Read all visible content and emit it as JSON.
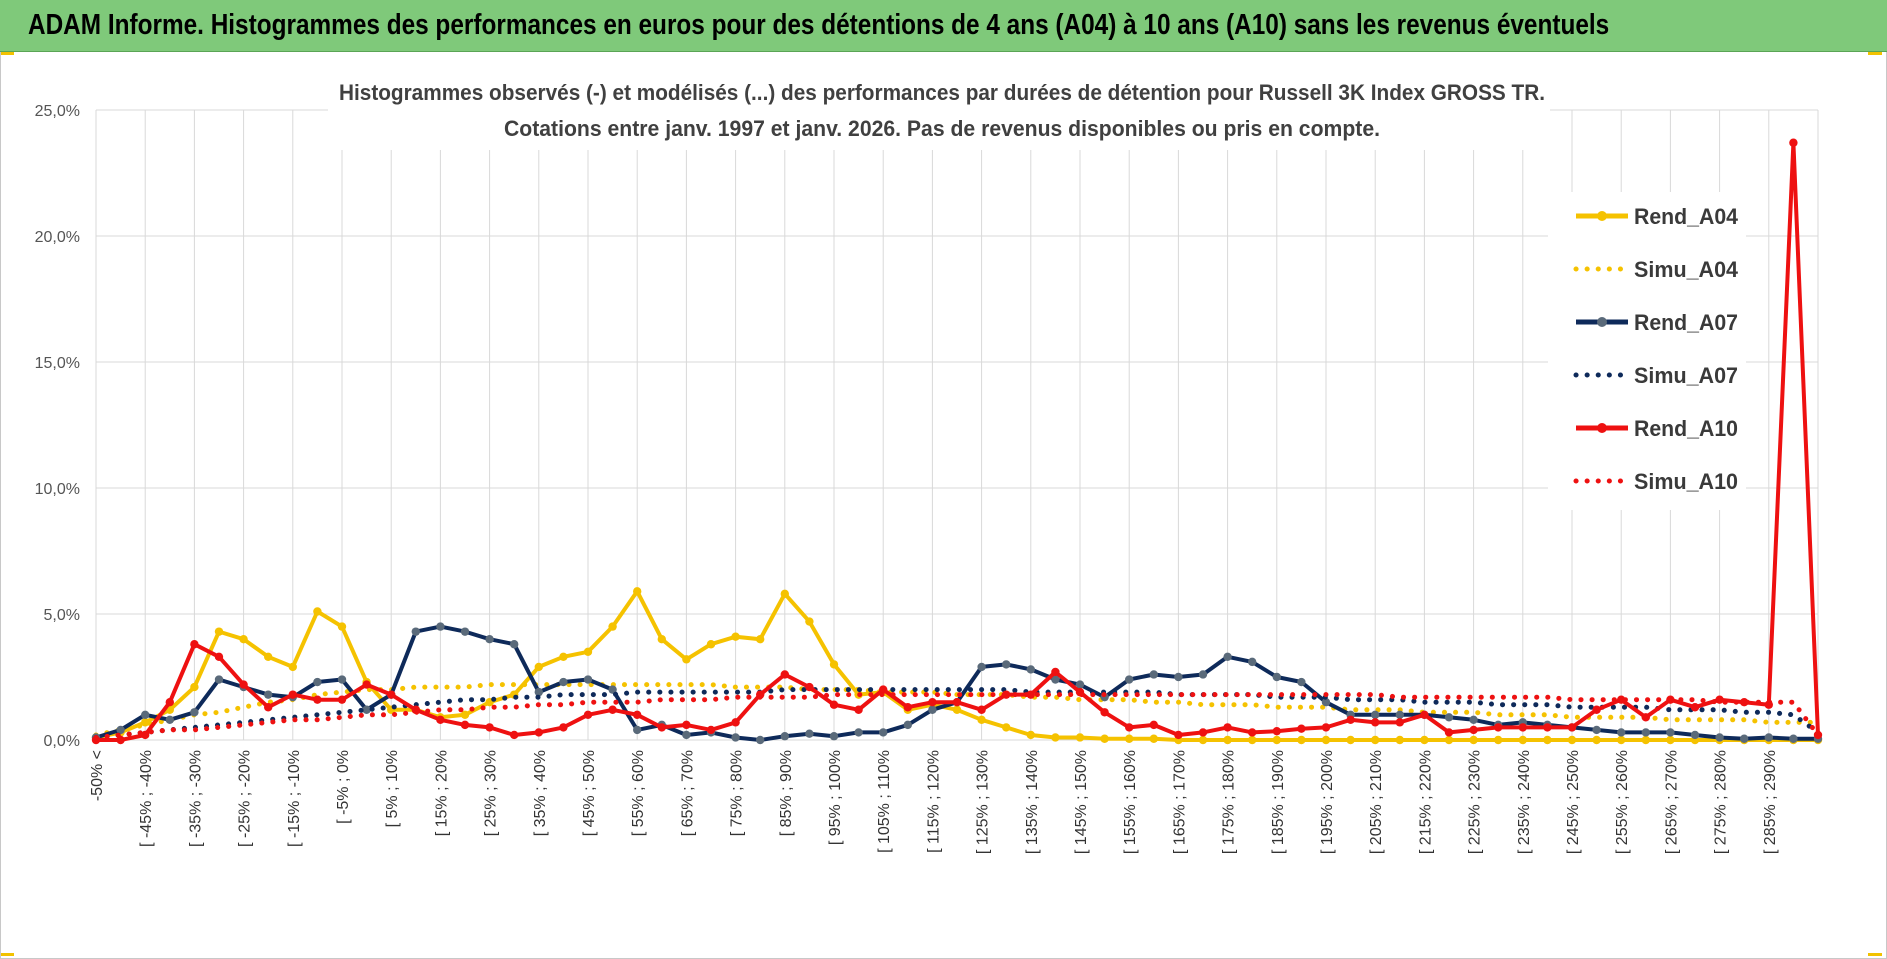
{
  "banner": {
    "title": "ADAM Informe. Histogrammes des performances en euros pour des détentions de 4 ans (A04) à 10 ans (A10) sans les revenus éventuels",
    "background_color": "#7fc97a"
  },
  "chart_data": {
    "type": "line",
    "title": [
      "Histogrammes observés (-) et modélisés (...) des performances par durées de détention pour Russell 3K Index GROSS TR.",
      "Cotations entre janv. 1997 et janv. 2026. Pas de revenus disponibles ou pris en compte."
    ],
    "xlabel": "",
    "ylabel": "",
    "ylim": [
      0,
      25
    ],
    "yticks": [
      "0,0%",
      "5,0%",
      "10,0%",
      "15,0%",
      "20,0%",
      "25,0%"
    ],
    "grid": true,
    "legend_position": "right",
    "categories": [
      "-50% <",
      "[ -50% ; -45%",
      "[ -45% ; -40%",
      "[ -40% ; -35%",
      "[ -35% ; -30%",
      "[ -30% ; -25%",
      "[ -25% ; -20%",
      "[ -20% ; -15%",
      "[ -15% ; -10%",
      "[ -10% ; -5%",
      "[ -5% ; 0%",
      "[ 0% ; 5%",
      "[ 5% ; 10%",
      "[ 10% ; 15%",
      "[ 15% ; 20%",
      "[ 20% ; 25%",
      "[ 25% ; 30%",
      "[ 30% ; 35%",
      "[ 35% ; 40%",
      "[ 40% ; 45%",
      "[ 45% ; 50%",
      "[ 50% ; 55%",
      "[ 55% ; 60%",
      "[ 60% ; 65%",
      "[ 65% ; 70%",
      "[ 70% ; 75%",
      "[ 75% ; 80%",
      "[ 80% ; 85%",
      "[ 85% ; 90%",
      "[ 90% ; 95%",
      "[ 95% ; 100%",
      "[ 100% ; 105%",
      "[ 105% ; 110%",
      "[ 110% ; 115%",
      "[ 115% ; 120%",
      "[ 120% ; 125%",
      "[ 125% ; 130%",
      "[ 130% ; 135%",
      "[ 135% ; 140%",
      "[ 140% ; 145%",
      "[ 145% ; 150%",
      "[ 150% ; 155%",
      "[ 155% ; 160%",
      "[ 160% ; 165%",
      "[ 165% ; 170%",
      "[ 170% ; 175%",
      "[ 175% ; 180%",
      "[ 180% ; 185%",
      "[ 185% ; 190%",
      "[ 190% ; 195%",
      "[ 195% ; 200%",
      "[ 200% ; 205%",
      "[ 205% ; 210%",
      "[ 210% ; 215%",
      "[ 215% ; 220%",
      "[ 220% ; 225%",
      "[ 225% ; 230%",
      "[ 230% ; 235%",
      "[ 235% ; 240%",
      "[ 240% ; 245%",
      "[ 245% ; 250%",
      "[ 250% ; 255%",
      "[ 255% ; 260%",
      "[ 260% ; 265%",
      "[ 265% ; 270%",
      "[ 270% ; 275%",
      "[ 275% ; 280%",
      "[ 280% ; 285%",
      "[ 285% ; 290%",
      "[ 290% ; 295%",
      "[ 295% ; 300%"
    ],
    "shown_tick_labels": [
      "-50% <",
      "[ -45% ; -40%",
      "[ -35% ; -30%",
      "[ -25% ; -20%",
      "[ -15% ; -10%",
      "[ -5% ; 0%",
      "[ 5% ; 10%",
      "[ 15% ; 20%",
      "[ 25% ; 30%",
      "[ 35% ; 40%",
      "[ 45% ; 50%",
      "[ 55% ; 60%",
      "[ 65% ; 70%",
      "[ 75% ; 80%",
      "[ 85% ; 90%",
      "[ 95% ; 100%",
      "[ 105% ; 110%",
      "[ 115% ; 120%",
      "[ 125% ; 130%",
      "[ 135% ; 140%",
      "[ 145% ; 150%",
      "[ 155% ; 160%",
      "[ 165% ; 170%",
      "[ 175% ; 180%",
      "[ 185% ; 190%",
      "[ 195% ; 200%",
      "[ 205% ; 210%",
      "[ 215% ; 220%",
      "[ 225% ; 230%",
      "[ 235% ; 240%",
      "[ 245% ; 250%",
      "[ 255% ; 260%",
      "[ 265% ; 270%",
      "[ 275% ; 280%",
      "[ 285% ; 290%"
    ],
    "series": [
      {
        "name": "Rend_A04",
        "style": "solid",
        "color": "#f5c200",
        "values": [
          0.1,
          0.3,
          0.7,
          1.2,
          2.1,
          4.3,
          4.0,
          3.3,
          2.9,
          5.1,
          4.5,
          2.3,
          1.2,
          1.2,
          0.9,
          1.0,
          1.5,
          1.8,
          2.9,
          3.3,
          3.5,
          4.5,
          5.9,
          4.0,
          3.2,
          3.8,
          4.1,
          4.0,
          5.8,
          4.7,
          3.0,
          1.8,
          1.9,
          1.2,
          1.4,
          1.2,
          0.8,
          0.5,
          0.2,
          0.1,
          0.1,
          0.05,
          0.05,
          0.05,
          0,
          0,
          0,
          0,
          0,
          0,
          0,
          0,
          0,
          0,
          0,
          0,
          0,
          0,
          0,
          0,
          0,
          0,
          0,
          0,
          0,
          0,
          0,
          0,
          0,
          0,
          0
        ]
      },
      {
        "name": "Simu_A04",
        "style": "dotted",
        "color": "#f5c200",
        "values": [
          0.2,
          0.4,
          0.6,
          0.8,
          1.0,
          1.1,
          1.3,
          1.5,
          1.6,
          1.8,
          1.9,
          2.0,
          2.0,
          2.1,
          2.1,
          2.1,
          2.2,
          2.2,
          2.2,
          2.2,
          2.2,
          2.2,
          2.2,
          2.2,
          2.2,
          2.2,
          2.1,
          2.1,
          2.1,
          2.0,
          2.0,
          2.0,
          1.9,
          1.9,
          1.9,
          1.8,
          1.8,
          1.8,
          1.7,
          1.7,
          1.6,
          1.6,
          1.6,
          1.5,
          1.5,
          1.4,
          1.4,
          1.4,
          1.3,
          1.3,
          1.3,
          1.2,
          1.2,
          1.2,
          1.1,
          1.1,
          1.1,
          1.0,
          1.0,
          1.0,
          0.9,
          0.9,
          0.9,
          0.9,
          0.8,
          0.8,
          0.8,
          0.8,
          0.7,
          0.7,
          0.7
        ]
      },
      {
        "name": "Rend_A07",
        "style": "solid",
        "color": "#0e2a5a",
        "values": [
          0.1,
          0.4,
          1.0,
          0.8,
          1.1,
          2.4,
          2.1,
          1.8,
          1.7,
          2.3,
          2.4,
          1.2,
          1.8,
          4.3,
          4.5,
          4.3,
          4.0,
          3.8,
          1.9,
          2.3,
          2.4,
          2.0,
          0.4,
          0.6,
          0.2,
          0.3,
          0.1,
          0.0,
          0.15,
          0.25,
          0.15,
          0.3,
          0.3,
          0.6,
          1.2,
          1.5,
          2.9,
          3.0,
          2.8,
          2.4,
          2.2,
          1.7,
          2.4,
          2.6,
          2.5,
          2.6,
          3.3,
          3.1,
          2.5,
          2.3,
          1.5,
          1.0,
          1.0,
          1.0,
          1.0,
          0.9,
          0.8,
          0.6,
          0.7,
          0.6,
          0.5,
          0.4,
          0.3,
          0.3,
          0.3,
          0.2,
          0.1,
          0.05,
          0.1,
          0.05,
          0.05
        ]
      },
      {
        "name": "Simu_A07",
        "style": "dotted",
        "color": "#0e2a5a",
        "values": [
          0.1,
          0.2,
          0.3,
          0.4,
          0.5,
          0.6,
          0.7,
          0.8,
          0.9,
          1.0,
          1.1,
          1.2,
          1.3,
          1.4,
          1.5,
          1.6,
          1.6,
          1.7,
          1.7,
          1.8,
          1.8,
          1.8,
          1.9,
          1.9,
          1.9,
          1.9,
          1.9,
          1.9,
          2.0,
          2.0,
          2.0,
          2.0,
          2.0,
          2.0,
          2.0,
          2.0,
          2.0,
          2.0,
          1.9,
          1.9,
          1.9,
          1.9,
          1.9,
          1.9,
          1.8,
          1.8,
          1.8,
          1.8,
          1.7,
          1.7,
          1.7,
          1.6,
          1.6,
          1.6,
          1.5,
          1.5,
          1.5,
          1.4,
          1.4,
          1.4,
          1.3,
          1.3,
          1.3,
          1.3,
          1.2,
          1.2,
          1.2,
          1.1,
          1.1,
          1.0,
          0.3
        ]
      },
      {
        "name": "Rend_A10",
        "style": "solid",
        "color": "#ee1111",
        "values": [
          0.0,
          0.0,
          0.2,
          1.5,
          3.8,
          3.3,
          2.2,
          1.3,
          1.8,
          1.6,
          1.6,
          2.2,
          1.8,
          1.2,
          0.8,
          0.6,
          0.5,
          0.2,
          0.3,
          0.5,
          1.0,
          1.2,
          1.0,
          0.5,
          0.6,
          0.4,
          0.7,
          1.8,
          2.6,
          2.1,
          1.4,
          1.2,
          2.0,
          1.3,
          1.5,
          1.5,
          1.2,
          1.8,
          1.8,
          2.7,
          1.9,
          1.1,
          0.5,
          0.6,
          0.2,
          0.3,
          0.5,
          0.3,
          0.35,
          0.45,
          0.5,
          0.8,
          0.7,
          0.7,
          1.0,
          0.3,
          0.4,
          0.5,
          0.5,
          0.5,
          0.5,
          1.2,
          1.6,
          0.9,
          1.6,
          1.3,
          1.6,
          1.5,
          1.4,
          23.7,
          0.2
        ]
      },
      {
        "name": "Simu_A10",
        "style": "dotted",
        "color": "#ee1111",
        "values": [
          0.1,
          0.2,
          0.3,
          0.4,
          0.4,
          0.5,
          0.6,
          0.7,
          0.8,
          0.8,
          0.9,
          1.0,
          1.0,
          1.1,
          1.2,
          1.2,
          1.3,
          1.3,
          1.4,
          1.4,
          1.5,
          1.5,
          1.5,
          1.6,
          1.6,
          1.6,
          1.7,
          1.7,
          1.7,
          1.7,
          1.8,
          1.8,
          1.8,
          1.8,
          1.8,
          1.8,
          1.8,
          1.8,
          1.8,
          1.8,
          1.8,
          1.8,
          1.8,
          1.8,
          1.8,
          1.8,
          1.8,
          1.8,
          1.8,
          1.8,
          1.8,
          1.8,
          1.8,
          1.7,
          1.7,
          1.7,
          1.7,
          1.7,
          1.7,
          1.7,
          1.6,
          1.6,
          1.6,
          1.6,
          1.6,
          1.6,
          1.5,
          1.5,
          1.5,
          1.5,
          0.2
        ]
      }
    ]
  }
}
